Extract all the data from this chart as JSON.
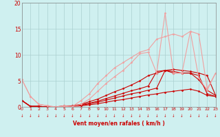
{
  "xlabel": "Vent moyen/en rafales ( km/h )",
  "xlim": [
    0,
    23
  ],
  "ylim": [
    0,
    20
  ],
  "yticks": [
    0,
    5,
    10,
    15,
    20
  ],
  "xticks": [
    0,
    1,
    2,
    3,
    4,
    5,
    6,
    7,
    8,
    9,
    10,
    11,
    12,
    13,
    14,
    15,
    16,
    17,
    18,
    19,
    20,
    21,
    22,
    23
  ],
  "bg_color": "#cff0f0",
  "grid_color": "#aacfcf",
  "series": [
    {
      "x": [
        0,
        1,
        2,
        3,
        4,
        5,
        6,
        7,
        8,
        9,
        10,
        11,
        12,
        13,
        14,
        15,
        16,
        17,
        18,
        19,
        20,
        21,
        22,
        23
      ],
      "y": [
        1.2,
        0.1,
        0.1,
        0.0,
        0.0,
        0.1,
        0.1,
        0.2,
        0.4,
        0.6,
        0.9,
        1.2,
        1.4,
        1.7,
        2.0,
        2.3,
        2.5,
        2.8,
        3.0,
        3.2,
        3.4,
        3.0,
        2.2,
        2.0
      ],
      "color": "#cc0000",
      "lw": 0.8,
      "marker": "D",
      "ms": 1.5
    },
    {
      "x": [
        0,
        1,
        2,
        3,
        4,
        5,
        6,
        7,
        8,
        9,
        10,
        11,
        12,
        13,
        14,
        15,
        16,
        17,
        18,
        19,
        20,
        21,
        22,
        23
      ],
      "y": [
        1.2,
        0.1,
        0.1,
        0.0,
        0.0,
        0.1,
        0.1,
        0.3,
        0.6,
        0.9,
        1.3,
        1.7,
        2.1,
        2.5,
        2.8,
        3.2,
        3.6,
        7.0,
        6.5,
        6.5,
        6.5,
        6.0,
        2.5,
        2.0
      ],
      "color": "#cc0000",
      "lw": 0.8,
      "marker": "D",
      "ms": 1.5
    },
    {
      "x": [
        0,
        1,
        2,
        3,
        4,
        5,
        6,
        7,
        8,
        9,
        10,
        11,
        12,
        13,
        14,
        15,
        16,
        17,
        18,
        19,
        20,
        21,
        22,
        23
      ],
      "y": [
        1.2,
        0.1,
        0.1,
        0.0,
        0.0,
        0.1,
        0.1,
        0.4,
        0.7,
        1.1,
        1.6,
        2.1,
        2.6,
        3.1,
        3.5,
        4.0,
        6.8,
        7.0,
        6.8,
        6.5,
        6.5,
        5.2,
        3.2,
        2.2
      ],
      "color": "#cc0000",
      "lw": 0.8,
      "marker": "D",
      "ms": 1.5
    },
    {
      "x": [
        0,
        1,
        2,
        3,
        4,
        5,
        6,
        7,
        8,
        9,
        10,
        11,
        12,
        13,
        14,
        15,
        16,
        17,
        18,
        19,
        20,
        21,
        22,
        23
      ],
      "y": [
        1.2,
        0.1,
        0.1,
        0.0,
        0.0,
        0.2,
        0.2,
        0.5,
        1.0,
        1.5,
        2.2,
        2.9,
        3.5,
        4.2,
        5.0,
        6.0,
        6.5,
        7.0,
        7.2,
        7.0,
        6.8,
        6.5,
        6.0,
        2.2
      ],
      "color": "#cc0000",
      "lw": 0.8,
      "marker": "D",
      "ms": 1.5
    },
    {
      "x": [
        0,
        1,
        2,
        3,
        4,
        5,
        6,
        7,
        8,
        9,
        10,
        11,
        12,
        13,
        14,
        15,
        16,
        17,
        18,
        19,
        20,
        21,
        22,
        23
      ],
      "y": [
        5.2,
        2.0,
        0.5,
        0.2,
        0.0,
        0.1,
        0.0,
        0.5,
        1.5,
        3.0,
        4.5,
        5.8,
        7.0,
        8.5,
        10.2,
        10.5,
        6.5,
        18.0,
        6.5,
        6.5,
        14.5,
        5.5,
        3.2,
        6.5
      ],
      "color": "#f0a0a0",
      "lw": 0.8,
      "marker": "D",
      "ms": 1.5
    },
    {
      "x": [
        0,
        1,
        2,
        3,
        4,
        5,
        6,
        7,
        8,
        9,
        10,
        11,
        12,
        13,
        14,
        15,
        16,
        17,
        18,
        19,
        20,
        21,
        22,
        23
      ],
      "y": [
        5.2,
        2.0,
        0.5,
        0.2,
        0.0,
        0.2,
        0.1,
        1.2,
        2.5,
        4.5,
        6.0,
        7.5,
        8.5,
        9.5,
        10.5,
        11.0,
        13.0,
        13.5,
        14.0,
        13.5,
        14.5,
        14.0,
        3.5,
        6.5
      ],
      "color": "#f0a0a0",
      "lw": 0.8,
      "marker": "D",
      "ms": 1.5
    }
  ]
}
